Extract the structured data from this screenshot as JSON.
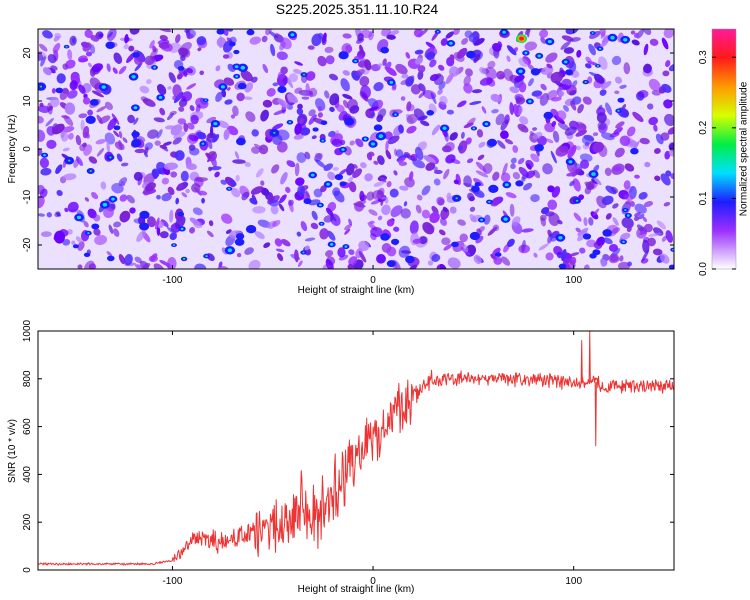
{
  "figure": {
    "title": "S225.2025.351.11.10.R24"
  },
  "chart_data": [
    {
      "type": "heatmap",
      "xlabel": "Height of straight line (km)",
      "ylabel": "Frequency (Hz)",
      "xlim": [
        -167,
        150
      ],
      "ylim": [
        -25,
        25
      ],
      "xticks": [
        -100,
        0,
        100
      ],
      "yticks": [
        -20,
        -10,
        0,
        10,
        20
      ],
      "xtick_labels": [
        "-100",
        "0",
        "100"
      ],
      "ytick_labels": [
        "-20",
        "-10",
        "0",
        "10",
        "20"
      ],
      "colorbar": {
        "label": "Normalized spectral amplitude",
        "range": [
          0,
          0.34
        ],
        "ticks": [
          0,
          0.1,
          0.2,
          0.3
        ],
        "tick_labels": [
          "0.0",
          "0.1",
          "0.2",
          "0.3"
        ],
        "colormap": "rainbow (white, violet, blue, cyan, green, yellow, orange, red, magenta)"
      },
      "description_values": {
        "background_level": 0.03,
        "typical_blob_level": 0.07,
        "peak": {
          "x": 74,
          "y": 23,
          "value": 0.34
        }
      },
      "grid": false
    },
    {
      "type": "line",
      "xlabel": "Height of straight line (km)",
      "ylabel": "SNR (10 * v/v)",
      "xlim": [
        -167,
        150
      ],
      "ylim": [
        0,
        1000
      ],
      "xticks": [
        -100,
        0,
        100
      ],
      "yticks": [
        0,
        200,
        400,
        600,
        800,
        1000
      ],
      "xtick_labels": [
        "-100",
        "0",
        "100"
      ],
      "ytick_labels": [
        "0",
        "200",
        "400",
        "600",
        "800",
        "1000"
      ],
      "grid": false,
      "series": [
        {
          "color": "#ee3333",
          "x": [
            -167,
            -150,
            -130,
            -110,
            -100,
            -95,
            -90,
            -85,
            -80,
            -75,
            -70,
            -65,
            -60,
            -55,
            -50,
            -45,
            -40,
            -35,
            -30,
            -25,
            -20,
            -15,
            -10,
            -5,
            0,
            5,
            10,
            15,
            20,
            25,
            30,
            40,
            50,
            60,
            70,
            80,
            90,
            100,
            105,
            110,
            115,
            120,
            130,
            140,
            150
          ],
          "y": [
            25,
            25,
            25,
            25,
            40,
            80,
            120,
            130,
            120,
            110,
            130,
            140,
            150,
            160,
            180,
            200,
            260,
            260,
            230,
            250,
            340,
            380,
            440,
            500,
            560,
            600,
            640,
            690,
            740,
            770,
            790,
            800,
            800,
            800,
            800,
            800,
            790,
            780,
            780,
            790,
            770,
            770,
            770,
            770,
            770
          ]
        }
      ],
      "notable": {
        "spikes": [
          {
            "x": 108,
            "y": 1000
          },
          {
            "x": 104,
            "y": 960
          },
          {
            "x": 111,
            "y": 520
          }
        ]
      }
    }
  ]
}
